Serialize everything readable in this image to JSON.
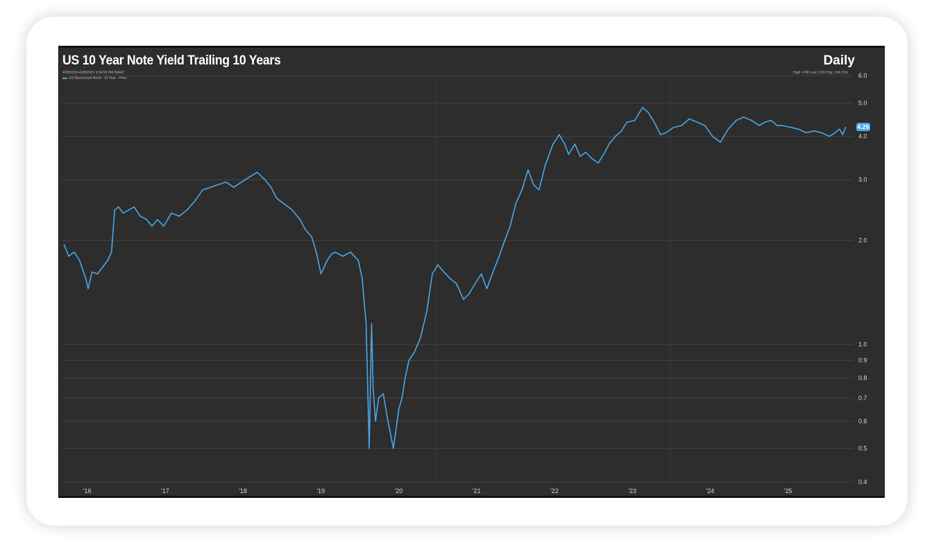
{
  "header": {
    "title": "US 10 Year Note Yield Trailing 10 Years",
    "period": "Daily",
    "subinfo": "4/28/2015-4/28/2025 3:34:58 PM WAEP",
    "legend_label": "US Benchmark Bond - 10 Year - Price",
    "stats": "High: 4.98 Low: 0.50 Chg: 134.21%"
  },
  "colors": {
    "background": "#2d2d2d",
    "line": "#4aa8ea",
    "grid": "#444444",
    "text": "#d8d8d8"
  },
  "chart_data": {
    "type": "line",
    "title": "US 10 Year Note Yield Trailing 10 Years",
    "y_scale": "log",
    "ylim": [
      0.4,
      6.0
    ],
    "y_ticks": [
      0.4,
      0.5,
      0.6,
      0.7,
      0.8,
      0.9,
      1.0,
      2.0,
      3.0,
      4.0,
      5.0,
      6.0
    ],
    "y_tick_labels": [
      "0.4",
      "0.5",
      "0.6",
      "0.7",
      "0.8",
      "0.9",
      "1.0",
      "2.0",
      "3.0",
      "4.0",
      "5.0",
      "6.0"
    ],
    "x_tick_labels": [
      "'16",
      "'17",
      "'18",
      "'19",
      "'20",
      "'21",
      "'22",
      "'23",
      "'24",
      "'25"
    ],
    "x_ticks": [
      2016.0,
      2017.0,
      2018.0,
      2019.0,
      2020.0,
      2021.0,
      2022.0,
      2023.0,
      2024.0,
      2025.0
    ],
    "xlim": [
      2015.7,
      2025.85
    ],
    "last_value_label": "4.26",
    "grid": true,
    "series": [
      {
        "name": "US Benchmark Bond - 10 Year - Price",
        "x": [
          2015.72,
          2015.78,
          2015.85,
          2015.92,
          2016.0,
          2016.03,
          2016.08,
          2016.15,
          2016.22,
          2016.28,
          2016.33,
          2016.37,
          2016.42,
          2016.48,
          2016.55,
          2016.62,
          2016.7,
          2016.78,
          2016.85,
          2016.92,
          2017.0,
          2017.1,
          2017.2,
          2017.3,
          2017.4,
          2017.5,
          2017.6,
          2017.7,
          2017.8,
          2017.9,
          2018.0,
          2018.1,
          2018.2,
          2018.3,
          2018.38,
          2018.45,
          2018.55,
          2018.65,
          2018.75,
          2018.82,
          2018.9,
          2018.96,
          2019.02,
          2019.1,
          2019.15,
          2019.2,
          2019.3,
          2019.4,
          2019.5,
          2019.55,
          2019.6,
          2019.64,
          2019.67,
          2019.69,
          2019.72,
          2019.76,
          2019.82,
          2019.88,
          2019.95,
          2020.02,
          2020.06,
          2020.1,
          2020.15,
          2020.22,
          2020.3,
          2020.38,
          2020.45,
          2020.52,
          2020.6,
          2020.68,
          2020.76,
          2020.85,
          2020.92,
          2021.0,
          2021.08,
          2021.15,
          2021.22,
          2021.3,
          2021.38,
          2021.45,
          2021.52,
          2021.6,
          2021.68,
          2021.75,
          2021.82,
          2021.9,
          2022.0,
          2022.08,
          2022.15,
          2022.2,
          2022.28,
          2022.35,
          2022.42,
          2022.5,
          2022.58,
          2022.65,
          2022.72,
          2022.8,
          2022.88,
          2022.95,
          2023.05,
          2023.15,
          2023.22,
          2023.3,
          2023.38,
          2023.45,
          2023.55,
          2023.65,
          2023.75,
          2023.85,
          2023.95,
          2024.05,
          2024.15,
          2024.25,
          2024.35,
          2024.45,
          2024.55,
          2024.65,
          2024.72,
          2024.8,
          2024.88,
          2024.95,
          2025.05,
          2025.15,
          2025.25,
          2025.35,
          2025.45,
          2025.55,
          2025.62,
          2025.68,
          2025.72,
          2025.76
        ],
        "values": [
          1.95,
          1.8,
          1.85,
          1.75,
          1.55,
          1.45,
          1.62,
          1.6,
          1.68,
          1.75,
          1.85,
          2.45,
          2.5,
          2.4,
          2.45,
          2.5,
          2.35,
          2.3,
          2.2,
          2.3,
          2.2,
          2.4,
          2.35,
          2.45,
          2.6,
          2.8,
          2.85,
          2.9,
          2.95,
          2.85,
          2.95,
          3.05,
          3.15,
          3.0,
          2.85,
          2.65,
          2.55,
          2.45,
          2.3,
          2.15,
          2.05,
          1.85,
          1.6,
          1.75,
          1.82,
          1.85,
          1.8,
          1.85,
          1.75,
          1.55,
          1.15,
          0.5,
          1.15,
          0.75,
          0.6,
          0.7,
          0.72,
          0.6,
          0.5,
          0.65,
          0.7,
          0.8,
          0.9,
          0.95,
          1.05,
          1.25,
          1.6,
          1.7,
          1.62,
          1.55,
          1.5,
          1.35,
          1.4,
          1.5,
          1.6,
          1.45,
          1.6,
          1.78,
          2.0,
          2.2,
          2.55,
          2.8,
          3.2,
          2.9,
          2.8,
          3.3,
          3.8,
          4.05,
          3.8,
          3.55,
          3.8,
          3.5,
          3.6,
          3.45,
          3.35,
          3.55,
          3.8,
          4.0,
          4.15,
          4.4,
          4.45,
          4.85,
          4.7,
          4.4,
          4.05,
          4.1,
          4.25,
          4.3,
          4.5,
          4.4,
          4.3,
          4.0,
          3.85,
          4.2,
          4.45,
          4.55,
          4.45,
          4.3,
          4.4,
          4.45,
          4.3,
          4.3,
          4.25,
          4.2,
          4.1,
          4.15,
          4.1,
          4.0,
          4.1,
          4.2,
          4.05,
          4.26
        ]
      }
    ]
  }
}
